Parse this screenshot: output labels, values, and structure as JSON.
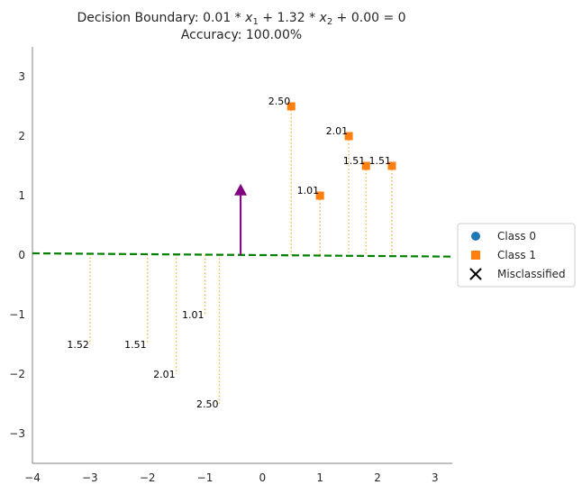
{
  "chart_data": {
    "type": "scatter",
    "title": "Decision Boundary: 0.01 * x1 + 1.32 * x2 + 0.00 = 0",
    "title_parts": {
      "prefix": "Decision Boundary: ",
      "w1": "0.01",
      "op1": " * ",
      "var1": "x",
      "sub1": "1",
      "op2": " + ",
      "w2": "1.32",
      "op3": " * ",
      "var2": "x",
      "sub2": "2",
      "op4": " + ",
      "bias": "0.00",
      "eq": " = 0"
    },
    "subtitle": "Accuracy: 100.00%",
    "xlabel": "",
    "ylabel": "",
    "xlim": [
      -4,
      3.3
    ],
    "ylim": [
      -3.5,
      3.5
    ],
    "x_ticks": [
      -4,
      -3,
      -2,
      -1,
      0,
      1,
      2,
      3
    ],
    "y_ticks": [
      -3,
      -2,
      -1,
      0,
      1,
      2,
      3
    ],
    "x_tick_labels": [
      "−4",
      "−3",
      "−2",
      "−1",
      "0",
      "1",
      "2",
      "3"
    ],
    "y_tick_labels": [
      "−3",
      "−2",
      "−1",
      "0",
      "1",
      "2",
      "3"
    ],
    "grid": false,
    "legend_position": "center-right-outside",
    "legend": [
      {
        "label": "Class 0",
        "marker": "circle",
        "color": "#1f77b4"
      },
      {
        "label": "Class 1",
        "marker": "square",
        "color": "#ff7f0e"
      },
      {
        "label": "Misclassified",
        "marker": "x",
        "color": "#000000"
      }
    ],
    "boundary": {
      "w1": 0.01,
      "w2": 1.32,
      "b": 0.0,
      "color": "#008000",
      "style": "dashed"
    },
    "normal_vector": {
      "x": -0.38,
      "y0": 0.0,
      "y1": 1.2,
      "color": "#800080"
    },
    "points": [
      {
        "x": 0.5,
        "y": 2.5,
        "class": 1,
        "distance": "2.50"
      },
      {
        "x": 1.0,
        "y": 1.0,
        "class": 1,
        "distance": "1.01"
      },
      {
        "x": 1.5,
        "y": 2.0,
        "class": 1,
        "distance": "2.01"
      },
      {
        "x": 1.8,
        "y": 1.5,
        "class": 1,
        "distance": "1.51"
      },
      {
        "x": 2.25,
        "y": 1.5,
        "class": 1,
        "distance": "1.51"
      }
    ],
    "projections": [
      {
        "x": -3.0,
        "y": -1.5,
        "distance": "1.52"
      },
      {
        "x": -2.0,
        "y": -1.5,
        "distance": "1.51"
      },
      {
        "x": -1.5,
        "y": -2.0,
        "distance": "2.01"
      },
      {
        "x": -1.0,
        "y": -1.0,
        "distance": "1.01"
      },
      {
        "x": -0.75,
        "y": -2.5,
        "distance": "2.50"
      }
    ],
    "colors": {
      "class0": "#1f77b4",
      "class1": "#ff7f0e",
      "projection_line": "#ffb030",
      "axis": "#808080",
      "text": "#262626"
    }
  }
}
